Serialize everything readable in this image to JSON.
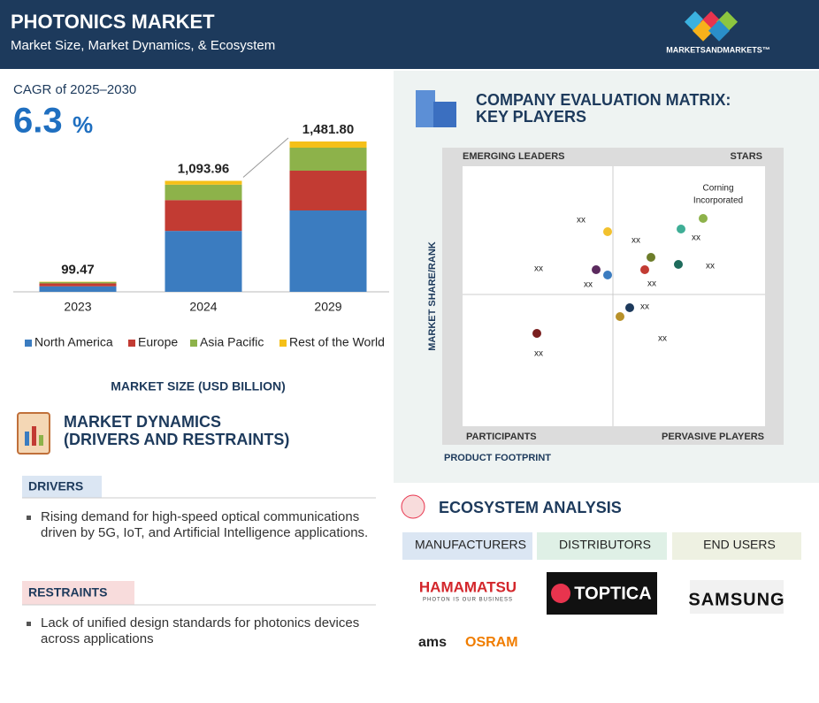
{
  "header": {
    "title": "PHOTONICS MARKET",
    "subtitle": "Market Size, Market Dynamics, & Ecosystem",
    "brand": "MARKETSANDMARKETS™"
  },
  "cagr": {
    "label": "CAGR of 2025–2030",
    "value": "6.3",
    "unit": "%"
  },
  "chart_data": {
    "type": "bar",
    "stacked": true,
    "categories": [
      "2023",
      "2024",
      "2029"
    ],
    "series": [
      {
        "name": "North America",
        "color": "#3b7cc0",
        "values": [
          54.3,
          600.2,
          801.9
        ]
      },
      {
        "name": "Europe",
        "color": "#c23b33",
        "values": [
          28.9,
          304.0,
          392.2
        ]
      },
      {
        "name": "Asia Pacific",
        "color": "#8db24a",
        "values": [
          12.7,
          151.9,
          226.6
        ]
      },
      {
        "name": "Rest of the World",
        "color": "#f5c018",
        "values": [
          3.5,
          37.9,
          61.0
        ]
      }
    ],
    "totals": [
      99.47,
      1093.96,
      1481.8
    ],
    "total_labels": [
      "99.47",
      "1,093.96",
      "1,481.80"
    ],
    "x_label": "MARKET SIZE (USD BILLION)"
  },
  "dynamics": {
    "title_lines": [
      "MARKET DYNAMICS",
      "(DRIVERS AND RESTRAINTS)"
    ],
    "drivers": {
      "heading": "DRIVERS",
      "items": [
        "Rising demand for high-speed optical communications driven by 5G, IoT, and Artificial Intelligence applications."
      ]
    },
    "restraints": {
      "heading": "RESTRAINTS",
      "items": [
        "Lack of unified design standards for photonics devices across applications"
      ]
    }
  },
  "matrix": {
    "title_lines": [
      "COMPANY EVALUATION MATRIX:",
      "KEY PLAYERS"
    ],
    "quadrants": {
      "top_left": "EMERGING LEADERS",
      "top_right": "STARS",
      "bottom_left": "PARTICIPANTS",
      "bottom_right": "PERVASIVE PLAYERS"
    },
    "y_label": "MARKET SHARE/RANK",
    "x_label": "PRODUCT FOOTPRINT",
    "labels": [
      "xx",
      "Corning",
      "Incorporated",
      "xx",
      "xx",
      "xx",
      "xx",
      "xx",
      "xx",
      "xx",
      "xx",
      "xx"
    ]
  },
  "ecosystem": {
    "title": "ECOSYSTEM ANALYSIS",
    "columns": [
      "MANUFACTURERS",
      "DISTRIBUTORS",
      "END USERS"
    ],
    "logos": {
      "hamamatsu": "HAMAMATSU",
      "hamamatsu_tag": "PHOTON IS OUR BUSINESS",
      "toptica": "TOPTICA",
      "samsung": "SAMSUNG",
      "ams": "ams",
      "osram": "OSRAM"
    }
  }
}
